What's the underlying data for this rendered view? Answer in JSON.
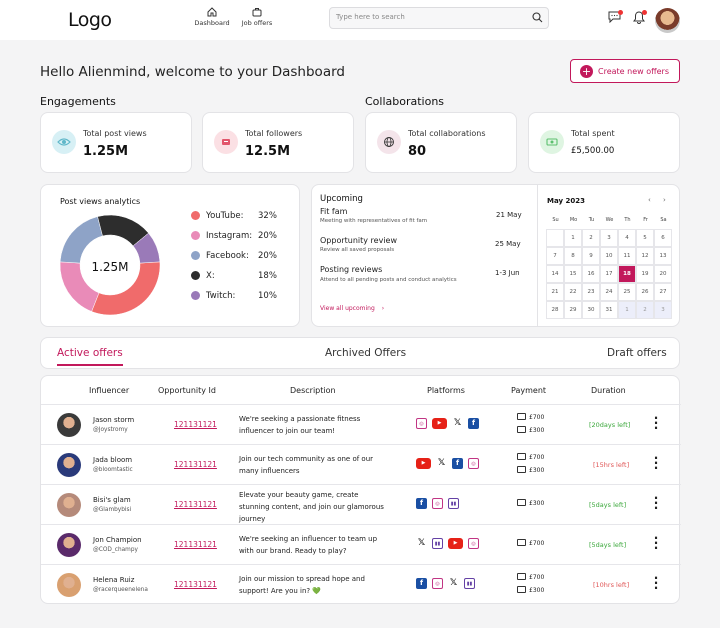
{
  "header": {
    "logo": "Logo",
    "nav": [
      {
        "label": "Dashboard"
      },
      {
        "label": "Job offers"
      }
    ],
    "search_placeholder": "Type here to search"
  },
  "hello": "Hello Alienmind, welcome to your  Dashboard",
  "create_button": "Create new offers",
  "engagements_title": "Engagements",
  "collaborations_title": "Collaborations",
  "stats": [
    {
      "title": "Total post views",
      "value": "1.25M",
      "color": "#d7f0f5",
      "icon": "eye-icon"
    },
    {
      "title": "Total followers",
      "value": "12.5M",
      "color": "#fbe0e4",
      "icon": "followers-icon"
    },
    {
      "title": "Total collaborations",
      "value": "80",
      "color": "#f4e4ea",
      "icon": "globe-icon"
    },
    {
      "title": "Total spent",
      "value": "£5,500.00",
      "color": "#dff5e2",
      "icon": "money-icon"
    }
  ],
  "analytics": {
    "title": "Post views analytics",
    "center": "1.25M",
    "items": [
      {
        "name": "YouTube:",
        "pct": "32%",
        "color": "#f06b6b"
      },
      {
        "name": "Instagram:",
        "pct": "20%",
        "color": "#e98bb8"
      },
      {
        "name": "Facebook:",
        "pct": "20%",
        "color": "#8ea3c7"
      },
      {
        "name": "X:",
        "pct": "18%",
        "color": "#2d2d2d"
      },
      {
        "name": "Twitch:",
        "pct": "10%",
        "color": "#9a7ab8"
      }
    ]
  },
  "chart_data": {
    "type": "pie",
    "categories": [
      "YouTube",
      "Instagram",
      "Facebook",
      "X",
      "Twitch"
    ],
    "values": [
      32,
      20,
      20,
      18,
      10
    ],
    "title": "Post views analytics"
  },
  "upcoming": {
    "title": "Upcoming",
    "events": [
      {
        "name": "Fit fam",
        "sub": "Meeting with representatives of fit fam",
        "date": "21 May"
      },
      {
        "name": "Opportunity review",
        "sub": "Review all saved proposals",
        "date": "25 May"
      },
      {
        "name": "Posting reviews",
        "sub": "Attend to all pending posts and conduct analytics",
        "date": "1-3 Jun"
      }
    ],
    "view_all": "View all upcoming"
  },
  "calendar": {
    "month": "May 2023",
    "dows": [
      "Su",
      "Mo",
      "Tu",
      "We",
      "Th",
      "Fr",
      "Sa"
    ],
    "weeks": [
      [
        "",
        "1",
        "2",
        "3",
        "4",
        "5",
        "6"
      ],
      [
        "7",
        "8",
        "9",
        "10",
        "11",
        "12",
        "13"
      ],
      [
        "14",
        "15",
        "16",
        "17",
        "18",
        "19",
        "20"
      ],
      [
        "21",
        "22",
        "23",
        "24",
        "25",
        "26",
        "27"
      ],
      [
        "28",
        "29",
        "30",
        "31",
        "1",
        "2",
        "3"
      ]
    ],
    "selected": "18"
  },
  "tabs": [
    "Active offers",
    "Archived Offers",
    "Draft offers"
  ],
  "table": {
    "headers": [
      "Influencer",
      "Opportunity Id",
      "Description",
      "Platforms",
      "Payment",
      "Duration"
    ],
    "rows": [
      {
        "name": "Jason storm",
        "handle": "@Joystromy",
        "opp": "121131121",
        "desc": "We're seeking a passionate fitness influencer to join our team!",
        "platforms": [
          "ig",
          "yt",
          "x",
          "fb"
        ],
        "pay": [
          "£700",
          "£300"
        ],
        "dur": "[20days left]",
        "durcolor": "green",
        "avatar": "#3a3a3a"
      },
      {
        "name": "Jada bloom",
        "handle": "@bloomtastic",
        "opp": "121131121",
        "desc": "Join our tech community as one of our many influencers",
        "platforms": [
          "yt",
          "x",
          "fb",
          "ig"
        ],
        "pay": [
          "£700",
          "£300"
        ],
        "dur": "[15hrs left]",
        "durcolor": "red",
        "avatar": "#2a3a7a"
      },
      {
        "name": "Bisi's glam",
        "handle": "@Glambybisi",
        "opp": "121131121",
        "desc": "Elevate your beauty game, create stunning content, and join our glamorous journey",
        "platforms": [
          "fb",
          "ig",
          "tw"
        ],
        "pay": [
          "£300"
        ],
        "dur": "[5days left]",
        "durcolor": "green",
        "avatar": "#b58a7a"
      },
      {
        "name": "Jon Champion",
        "handle": "@COD_champy",
        "opp": "121131121",
        "desc": "We're seeking an influencer to team up with our brand. Ready to play?",
        "platforms": [
          "x",
          "tw",
          "yt",
          "ig"
        ],
        "pay": [
          "£700"
        ],
        "dur": "[5days left]",
        "durcolor": "green",
        "avatar": "#5a2a6a"
      },
      {
        "name": "Helena Ruiz",
        "handle": "@racerqueenelena",
        "opp": "121131121",
        "desc": "Join our mission to spread hope and support! Are you in? 💚",
        "platforms": [
          "fb",
          "ig",
          "x",
          "tw"
        ],
        "pay": [
          "£700",
          "£300"
        ],
        "dur": "[10hrs left]",
        "durcolor": "red",
        "avatar": "#d9a070"
      }
    ]
  }
}
